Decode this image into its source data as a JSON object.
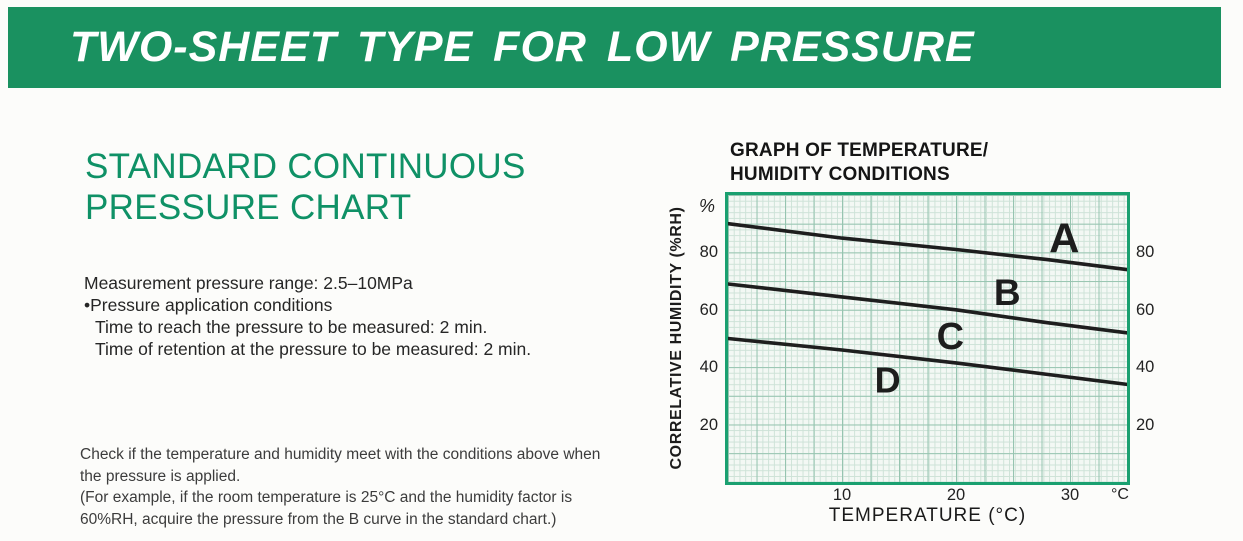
{
  "banner": {
    "title": "TWO-SHEET TYPE FOR LOW PRESSURE"
  },
  "left": {
    "heading_lines": [
      "STANDARD CONTINUOUS",
      "PRESSURE CHART"
    ],
    "specs": [
      "Measurement pressure range: 2.5–10MPa",
      "•Pressure application conditions",
      "Time to reach the pressure to be measured: 2 min.",
      "Time of retention at the pressure to be measured: 2 min."
    ],
    "note_lines": [
      "Check if the temperature and humidity meet with the conditions above when",
      "the pressure is applied.",
      "(For example, if the room temperature is 25°C and the humidity factor is",
      "60%RH, acquire the pressure from the B curve in the standard chart.)"
    ]
  },
  "graph": {
    "title_lines": [
      "GRAPH OF TEMPERATURE/",
      "HUMIDITY CONDITIONS"
    ]
  },
  "chart_data": {
    "type": "line",
    "title": "GRAPH OF TEMPERATURE/HUMIDITY CONDITIONS",
    "xlabel": "TEMPERATURE (°C)",
    "ylabel": "CORRELATIVE HUMIDITY (%RH)",
    "x_unit": "°C",
    "y_unit": "%",
    "xlim": [
      0,
      35
    ],
    "ylim": [
      0,
      100
    ],
    "x_ticks": [
      10,
      20,
      30
    ],
    "y_ticks": [
      20,
      40,
      60,
      80
    ],
    "grid": "fine graph paper, major every 2.5°C / 10%RH",
    "legend_position": "labels on plot",
    "series": [
      {
        "name": "A",
        "x": [
          0,
          10,
          20,
          28,
          35
        ],
        "y": [
          90,
          85,
          81,
          77.5,
          74
        ]
      },
      {
        "name": "B",
        "x": [
          0,
          10,
          20,
          28,
          35
        ],
        "y": [
          69,
          64.5,
          60,
          55.5,
          52
        ]
      },
      {
        "name": "C",
        "x": [
          0,
          10,
          20,
          28,
          35
        ],
        "y": [
          50,
          46,
          41.5,
          37.5,
          34
        ]
      }
    ],
    "zone_labels": [
      {
        "text": "A",
        "x": 29.5,
        "y": 85,
        "size": 42
      },
      {
        "text": "B",
        "x": 24.5,
        "y": 66,
        "size": 37
      },
      {
        "text": "C",
        "x": 19.5,
        "y": 50.5,
        "size": 38
      },
      {
        "text": "D",
        "x": 14,
        "y": 35.5,
        "size": 36
      }
    ]
  },
  "colors": {
    "banner_green": "#1a9160",
    "heading_green": "#0f9166",
    "plot_border_green": "#1aa070",
    "grid_major": "#96c4b0",
    "grid_minor": "#cde2d7",
    "plot_background": "#f3f8f4",
    "curve_black": "#1e1e1e"
  }
}
